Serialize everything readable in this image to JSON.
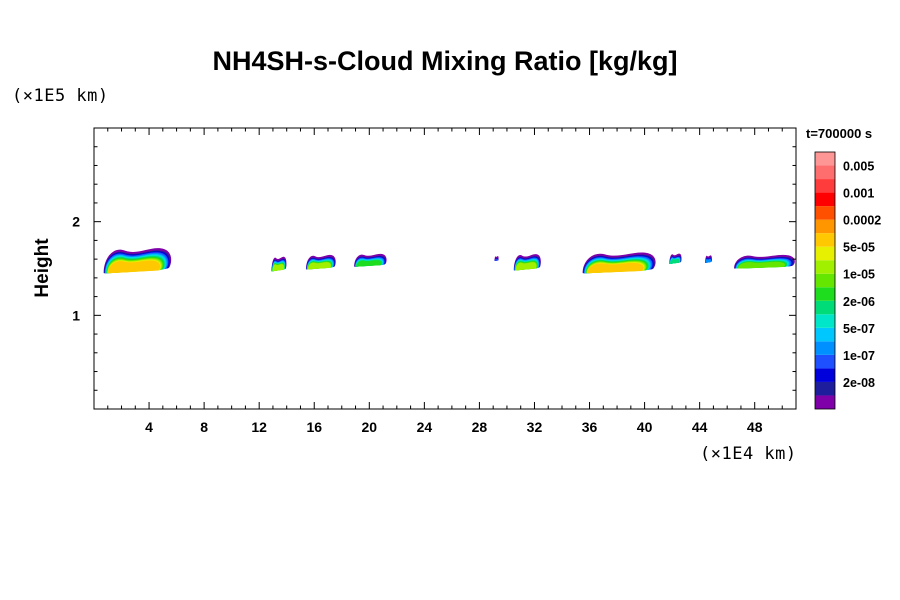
{
  "chart_data": {
    "type": "heatmap",
    "title": "NH4SH-s-Cloud Mixing Ratio [kg/kg]",
    "ylabel": "Height",
    "xlabel": "",
    "x_unit_label": "(×1E4 km)",
    "y_unit_label": "(×1E5 km)",
    "time_label": "t=700000 s",
    "xlim": [
      0,
      51
    ],
    "ylim": [
      0,
      3
    ],
    "x_ticks": [
      4,
      8,
      12,
      16,
      20,
      24,
      28,
      32,
      36,
      40,
      44,
      48
    ],
    "x_minor_step": 1,
    "y_ticks": [
      1,
      2
    ],
    "y_minor_step": 0.2,
    "colorbar": {
      "position": "right",
      "levels": [
        {
          "label": "",
          "color": "#7f00a8"
        },
        {
          "label": "2e-08",
          "color": "#1e1e9c"
        },
        {
          "label": "",
          "color": "#0000dc"
        },
        {
          "label": "1e-07",
          "color": "#1e50ff"
        },
        {
          "label": "",
          "color": "#0090ff"
        },
        {
          "label": "5e-07",
          "color": "#00c8ff"
        },
        {
          "label": "",
          "color": "#00e6c8"
        },
        {
          "label": "2e-06",
          "color": "#00dc78"
        },
        {
          "label": "",
          "color": "#1edc1e"
        },
        {
          "label": "1e-05",
          "color": "#64e600"
        },
        {
          "label": "",
          "color": "#a0f000"
        },
        {
          "label": "5e-05",
          "color": "#e6f000"
        },
        {
          "label": "",
          "color": "#ffc800"
        },
        {
          "label": "0.0002",
          "color": "#ff9600"
        },
        {
          "label": "",
          "color": "#ff5000"
        },
        {
          "label": "0.001",
          "color": "#ff0000"
        },
        {
          "label": "",
          "color": "#ff3c3c"
        },
        {
          "label": "0.005",
          "color": "#ff6e6e"
        },
        {
          "label": "",
          "color": "#ff9696"
        }
      ]
    },
    "cloud_patches": [
      {
        "x0": 0.7,
        "x1": 5.7,
        "ytop": 1.72,
        "ybot": 1.45,
        "peak_level": 12
      },
      {
        "x0": 12.9,
        "x1": 14.0,
        "ytop": 1.62,
        "ybot": 1.47,
        "peak_level": 10
      },
      {
        "x0": 15.4,
        "x1": 17.6,
        "ytop": 1.64,
        "ybot": 1.49,
        "peak_level": 10
      },
      {
        "x0": 18.9,
        "x1": 21.3,
        "ytop": 1.65,
        "ybot": 1.52,
        "peak_level": 8
      },
      {
        "x0": 29.1,
        "x1": 29.4,
        "ytop": 1.62,
        "ybot": 1.58,
        "peak_level": 3
      },
      {
        "x0": 30.5,
        "x1": 32.5,
        "ytop": 1.65,
        "ybot": 1.48,
        "peak_level": 10
      },
      {
        "x0": 35.5,
        "x1": 40.9,
        "ytop": 1.67,
        "ybot": 1.45,
        "peak_level": 12
      },
      {
        "x0": 41.8,
        "x1": 42.7,
        "ytop": 1.65,
        "ybot": 1.55,
        "peak_level": 7
      },
      {
        "x0": 44.4,
        "x1": 44.9,
        "ytop": 1.63,
        "ybot": 1.56,
        "peak_level": 4
      },
      {
        "x0": 46.5,
        "x1": 51.0,
        "ytop": 1.64,
        "ybot": 1.5,
        "peak_level": 9
      }
    ]
  }
}
